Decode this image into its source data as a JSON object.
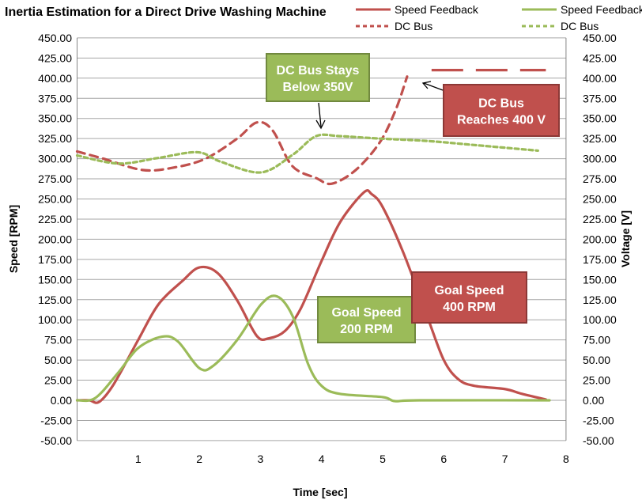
{
  "chart_data": {
    "type": "line",
    "title": "Inertia Estimation for a Direct Drive Washing Machine",
    "xlabel": "Time [sec]",
    "ylabel": "Speed [RPM]",
    "y2label": "Voltage [V]",
    "xlim": [
      0,
      8
    ],
    "ylim": [
      -50,
      450
    ],
    "y2lim": [
      -50,
      450
    ],
    "xticks": [
      "1",
      "2",
      "3",
      "4",
      "5",
      "6",
      "7",
      "8"
    ],
    "yticks": [
      "450.00",
      "425.00",
      "400.00",
      "375.00",
      "350.00",
      "325.00",
      "300.00",
      "275.00",
      "250.00",
      "225.00",
      "200.00",
      "175.00",
      "150.00",
      "125.00",
      "100.00",
      "75.00",
      "50.00",
      "25.00",
      "0.00",
      "-25.00",
      "-50.00"
    ],
    "grid": true,
    "legend_position": "top-right",
    "series": [
      {
        "name": "Speed Feedback",
        "color": "#c0504d",
        "style": "solid",
        "x": [
          0,
          0.2,
          0.36,
          0.6,
          1,
          1.33,
          1.72,
          2,
          2.3,
          2.62,
          2.94,
          3.14,
          3.4,
          3.66,
          4,
          4.31,
          4.69,
          4.82,
          5,
          5.34,
          5.73,
          6,
          6.24,
          6.5,
          7,
          7.28,
          7.67
        ],
        "y": [
          0,
          0,
          -2,
          20,
          75,
          119,
          148,
          165,
          158,
          124,
          80,
          77,
          86,
          114,
          173,
          222,
          258,
          256,
          240,
          183,
          104,
          50,
          26,
          18,
          14,
          8,
          1
        ]
      },
      {
        "name": "DC Bus",
        "color": "#c0504d",
        "style": "dash",
        "x": [
          0,
          0.43,
          1.07,
          1.58,
          2.1,
          2.62,
          2.94,
          3.2,
          3.52,
          3.91,
          4.17,
          4.56,
          4.95,
          5.21,
          5.4
        ],
        "y": [
          309,
          300,
          286,
          289,
          300,
          325,
          345,
          335,
          291,
          276,
          269,
          286,
          320,
          360,
          402
        ]
      },
      {
        "name": "Speed Feedback",
        "color": "#9bbb59",
        "style": "solid",
        "x": [
          0,
          0.3,
          0.68,
          1,
          1.39,
          1.65,
          2,
          2.23,
          2.62,
          3.01,
          3.27,
          3.53,
          3.78,
          4,
          4.3,
          5,
          5.2,
          5.6,
          7.73
        ],
        "y": [
          0,
          3,
          35,
          65,
          79,
          73,
          40,
          43,
          75,
          119,
          129,
          104,
          45,
          18,
          8,
          4,
          -1,
          0,
          0
        ]
      },
      {
        "name": "DC Bus",
        "color": "#9bbb59",
        "style": "dot",
        "x": [
          0,
          0.68,
          1.33,
          1.97,
          2.36,
          3.01,
          3.53,
          3.91,
          4.3,
          4.95,
          5.73,
          6.5,
          7.54
        ],
        "y": [
          304,
          294,
          301,
          308,
          296,
          283,
          305,
          328,
          328,
          325,
          322,
          317,
          310
        ]
      }
    ],
    "overflow_segment": {
      "series": "DC Bus (red)",
      "x": [
        5.8,
        7.67
      ],
      "y": 410
    },
    "annotations": [
      {
        "id": "green-dc",
        "lines": [
          "DC Bus Stays",
          "Below 350V"
        ],
        "color": "#9bbb59"
      },
      {
        "id": "red-dc",
        "lines": [
          "DC Bus",
          "Reaches 400 V"
        ],
        "color": "#c0504d"
      },
      {
        "id": "green-goal",
        "lines": [
          "Goal Speed",
          "200 RPM"
        ],
        "color": "#9bbb59"
      },
      {
        "id": "red-goal",
        "lines": [
          "Goal Speed",
          "400 RPM"
        ],
        "color": "#c0504d"
      }
    ]
  }
}
